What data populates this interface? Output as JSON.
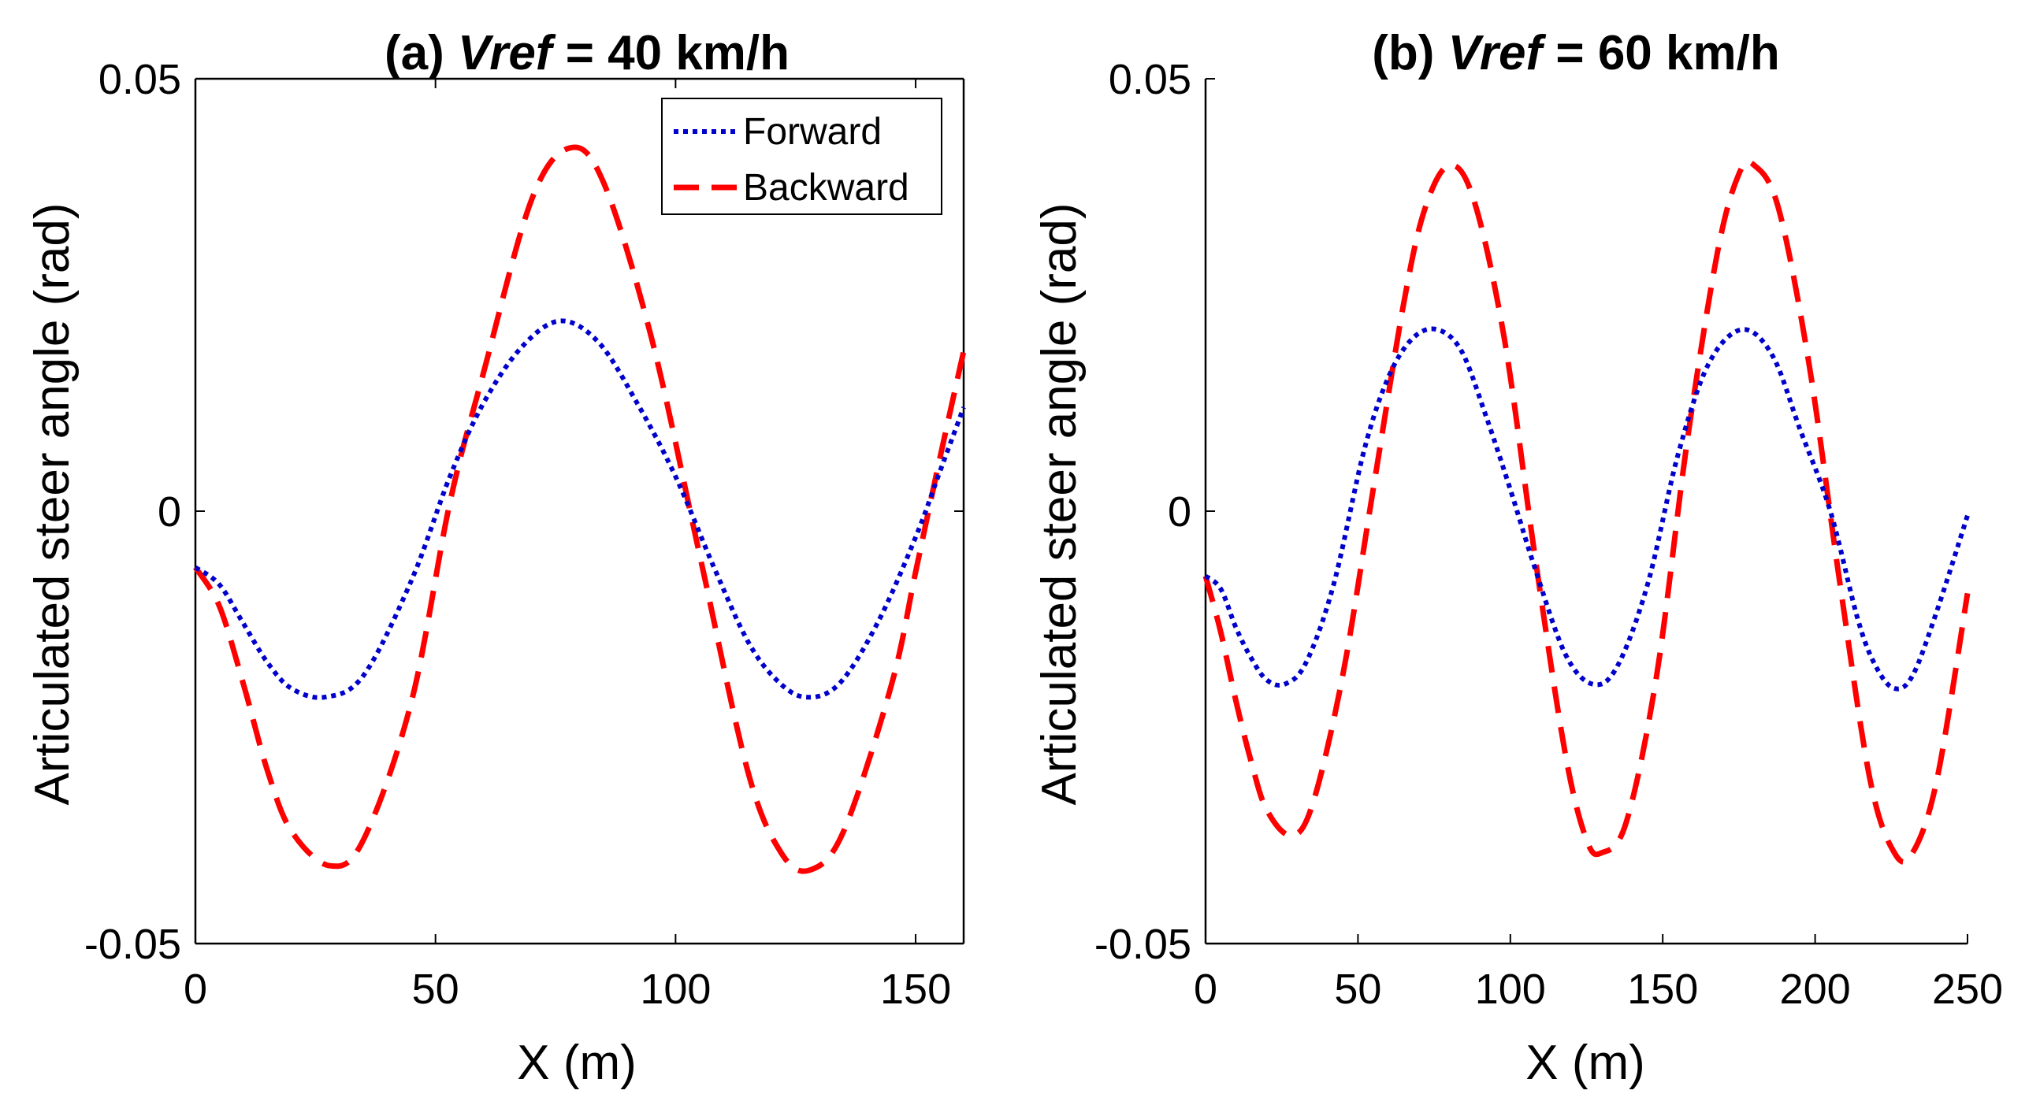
{
  "colors": {
    "forward": "#0000cc",
    "backward": "#ff0000",
    "axis": "#000000",
    "background": "#ffffff"
  },
  "chart_data": [
    {
      "id": "a",
      "type": "line",
      "title_prefix": "(a) ",
      "title_var": "Vref",
      "title_suffix": " = 40 km/h",
      "xlabel": "X (m)",
      "ylabel": "Articulated steer angle (rad)",
      "xlim": [
        0,
        160
      ],
      "ylim": [
        -0.05,
        0.05
      ],
      "xticks": [
        0,
        50,
        100,
        150
      ],
      "xtick_labels": [
        "0",
        "50",
        "100",
        "150"
      ],
      "yticks": [
        -0.05,
        0,
        0.05
      ],
      "ytick_labels": [
        "-0.05",
        "0",
        "0.05"
      ],
      "box": true,
      "legend": {
        "placement": "top-right",
        "entries": [
          {
            "label": "Forward",
            "style": "dotted",
            "series": "forward"
          },
          {
            "label": "Backward",
            "style": "dashed",
            "series": "backward"
          }
        ]
      },
      "series": [
        {
          "name": "Forward",
          "key": "forward",
          "style": "dotted",
          "x": [
            0,
            5,
            10,
            15,
            20,
            27,
            35,
            45,
            53,
            60,
            68,
            76,
            84,
            92,
            100,
            108,
            115,
            121,
            127,
            134,
            142,
            150,
            155,
            160
          ],
          "y": [
            -0.0065,
            -0.0085,
            -0.013,
            -0.0175,
            -0.0205,
            -0.0215,
            -0.019,
            -0.008,
            0.004,
            0.0125,
            0.019,
            0.022,
            0.0195,
            0.0125,
            0.004,
            -0.0065,
            -0.015,
            -0.0195,
            -0.0215,
            -0.02,
            -0.013,
            -0.003,
            0.0045,
            0.012
          ]
        },
        {
          "name": "Backward",
          "key": "backward",
          "style": "dashed",
          "x": [
            0,
            5,
            10,
            15,
            20,
            28,
            35,
            45,
            53,
            60,
            70,
            78,
            85,
            95,
            105,
            115,
            122,
            128,
            135,
            145,
            150,
            155,
            160
          ],
          "y": [
            -0.0065,
            -0.011,
            -0.02,
            -0.03,
            -0.037,
            -0.041,
            -0.038,
            -0.022,
            0.001,
            0.016,
            0.036,
            0.042,
            0.038,
            0.02,
            -0.005,
            -0.03,
            -0.0395,
            -0.0415,
            -0.037,
            -0.02,
            -0.007,
            0.006,
            0.0185
          ]
        }
      ]
    },
    {
      "id": "b",
      "type": "line",
      "title_prefix": "(b) ",
      "title_var": "Vref",
      "title_suffix": " = 60 km/h",
      "xlabel": "X (m)",
      "ylabel": "Articulated steer angle (rad)",
      "xlim": [
        0,
        250
      ],
      "ylim": [
        -0.05,
        0.05
      ],
      "xticks": [
        0,
        50,
        100,
        150,
        200,
        250
      ],
      "xtick_labels": [
        "0",
        "50",
        "100",
        "150",
        "200",
        "250"
      ],
      "yticks": [
        -0.05,
        0,
        0.05
      ],
      "ytick_labels": [
        "-0.05",
        "0",
        "0.05"
      ],
      "box": false,
      "series": [
        {
          "name": "Forward",
          "key": "forward",
          "style": "dotted",
          "x": [
            0,
            5,
            10,
            15,
            20,
            26,
            33,
            42,
            52,
            60,
            68,
            76,
            84,
            92,
            100,
            108,
            118,
            127,
            135,
            145,
            155,
            165,
            176,
            186,
            195,
            205,
            214,
            220,
            226,
            232,
            240,
            250
          ],
          "y": [
            -0.0075,
            -0.009,
            -0.0135,
            -0.017,
            -0.0195,
            -0.02,
            -0.0175,
            -0.0085,
            0.007,
            0.0155,
            0.02,
            0.021,
            0.0185,
            0.011,
            0.0025,
            -0.0065,
            -0.0165,
            -0.02,
            -0.018,
            -0.0085,
            0.0065,
            0.017,
            0.021,
            0.018,
            0.0095,
            0.0,
            -0.0125,
            -0.018,
            -0.0205,
            -0.019,
            -0.0115,
            -0.0005
          ]
        },
        {
          "name": "Backward",
          "key": "backward",
          "style": "dashed",
          "x": [
            0,
            5,
            10,
            15,
            20,
            28,
            35,
            45,
            55,
            65,
            72,
            80,
            88,
            98,
            108,
            118,
            125,
            130,
            138,
            148,
            158,
            168,
            175,
            180,
            188,
            198,
            208,
            218,
            226,
            232,
            240,
            250
          ],
          "y": [
            -0.0075,
            -0.014,
            -0.022,
            -0.029,
            -0.0345,
            -0.0375,
            -0.034,
            -0.019,
            0.0025,
            0.024,
            0.035,
            0.04,
            0.036,
            0.02,
            -0.005,
            -0.028,
            -0.038,
            -0.0395,
            -0.036,
            -0.019,
            0.008,
            0.03,
            0.039,
            0.04,
            0.035,
            0.017,
            -0.008,
            -0.031,
            -0.0395,
            -0.0395,
            -0.031,
            -0.0095
          ]
        }
      ]
    }
  ]
}
